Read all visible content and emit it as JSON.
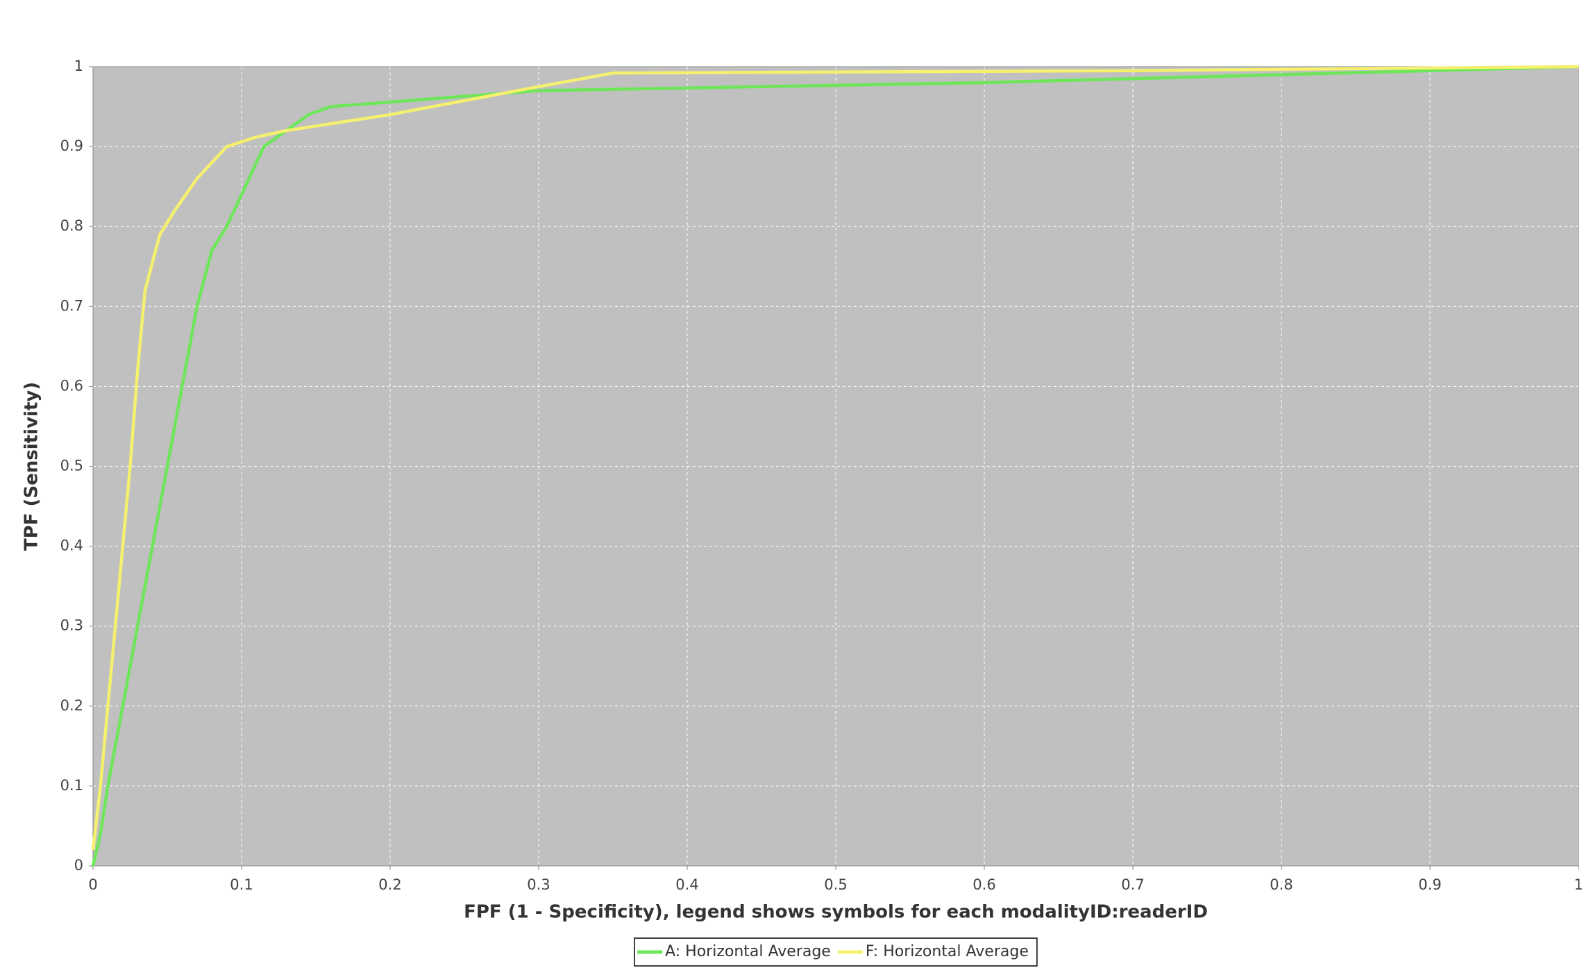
{
  "chart_data": {
    "type": "line",
    "x_label": "FPF (1 - Specificity), legend shows symbols for each modalityID:readerID",
    "y_label": "TPF (Sensitivity)",
    "xlim": [
      0,
      1
    ],
    "ylim": [
      0,
      1
    ],
    "xticks": [
      0,
      0.1,
      0.2,
      0.3,
      0.4,
      0.5,
      0.6,
      0.7,
      0.8,
      0.9,
      1
    ],
    "yticks": [
      0,
      0.1,
      0.2,
      0.3,
      0.4,
      0.5,
      0.6,
      0.7,
      0.8,
      0.9,
      1
    ],
    "grid": true,
    "legend": "bottom",
    "series": [
      {
        "name": "A: Horizontal Average",
        "color": "#6ee65a",
        "x": [
          0,
          0.005,
          0.01,
          0.02,
          0.03,
          0.04,
          0.05,
          0.06,
          0.07,
          0.08,
          0.09,
          0.1,
          0.115,
          0.13,
          0.145,
          0.16,
          0.3,
          0.6,
          0.9,
          1
        ],
        "values": [
          0,
          0.04,
          0.1,
          0.2,
          0.3,
          0.4,
          0.5,
          0.6,
          0.7,
          0.77,
          0.8,
          0.84,
          0.9,
          0.92,
          0.94,
          0.95,
          0.97,
          0.98,
          0.995,
          1
        ]
      },
      {
        "name": "F: Horizontal Average",
        "color": "#f5f06e",
        "x": [
          0,
          0.005,
          0.01,
          0.015,
          0.02,
          0.025,
          0.03,
          0.035,
          0.045,
          0.055,
          0.07,
          0.09,
          0.11,
          0.13,
          0.2,
          0.3,
          0.35,
          0.7,
          1
        ],
        "values": [
          0.02,
          0.1,
          0.2,
          0.3,
          0.4,
          0.5,
          0.62,
          0.72,
          0.79,
          0.82,
          0.86,
          0.9,
          0.912,
          0.92,
          0.94,
          0.975,
          0.992,
          0.995,
          1
        ]
      }
    ]
  }
}
